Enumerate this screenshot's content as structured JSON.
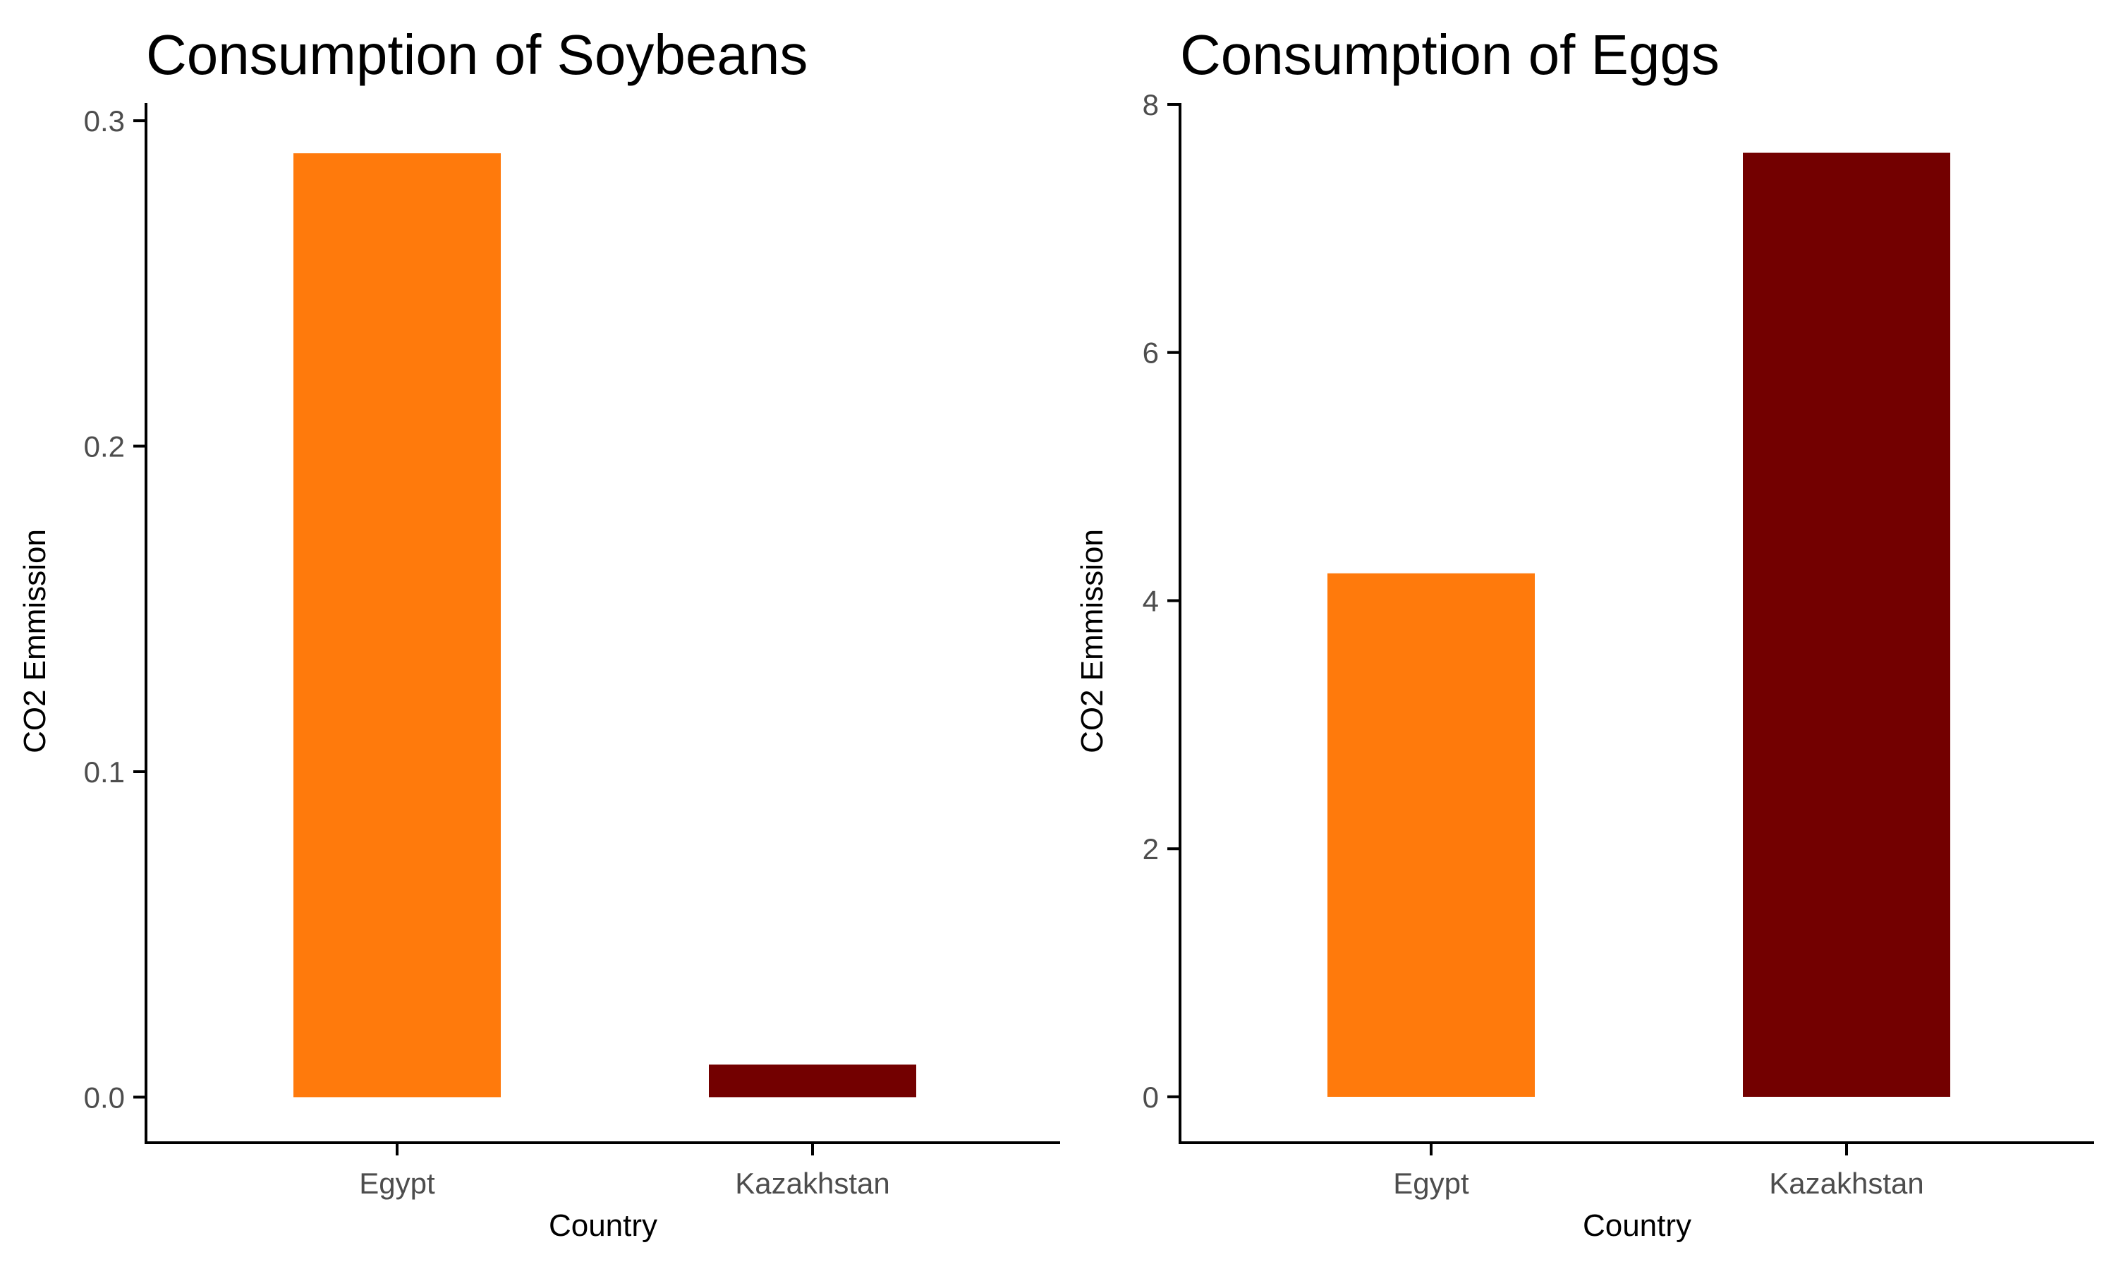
{
  "colors": {
    "Egypt": "#FF7A0C",
    "Kazakhstan": "#730000",
    "axis": "#000000",
    "tick_text": "#4d4d4d"
  },
  "chart_data": [
    {
      "type": "bar",
      "title": "Consumption of Soybeans",
      "xlabel": "Country",
      "ylabel": "CO2 Emmission",
      "categories": [
        "Egypt",
        "Kazakhstan"
      ],
      "values": [
        0.29,
        0.01
      ],
      "ylim": [
        -0.014,
        0.305
      ],
      "yticks": [
        0.0,
        0.1,
        0.2,
        0.3
      ],
      "ytick_labels": [
        "0.0",
        "0.1",
        "0.2",
        "0.3"
      ],
      "grid": false,
      "legend": "none"
    },
    {
      "type": "bar",
      "title": "Consumption of Eggs",
      "xlabel": "Country",
      "ylabel": "CO2 Emmission",
      "categories": [
        "Egypt",
        "Kazakhstan"
      ],
      "values": [
        4.22,
        7.61
      ],
      "ylim": [
        -0.37,
        8.0
      ],
      "yticks": [
        0,
        2,
        4,
        6,
        8
      ],
      "ytick_labels": [
        "0",
        "2",
        "4",
        "6",
        "8"
      ],
      "grid": false,
      "legend": "none"
    }
  ]
}
